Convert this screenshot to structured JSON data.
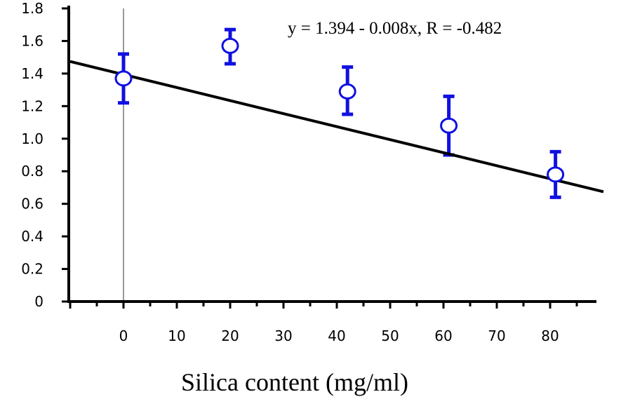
{
  "chart_data": {
    "type": "scatter",
    "title": "",
    "xlabel": "Silica content (mg/ml)",
    "ylabel": "",
    "xlim": [
      -10,
      90
    ],
    "ylim": [
      0,
      1.8
    ],
    "x_ticks": [
      0,
      10,
      20,
      30,
      40,
      50,
      60,
      70,
      80
    ],
    "x_tick_labels": [
      "0",
      "10",
      "20",
      "30",
      "40",
      "50",
      "60",
      "70",
      "80"
    ],
    "y_ticks": [
      0,
      0.2,
      0.4,
      0.6,
      0.8,
      1.0,
      1.2,
      1.4,
      1.6,
      1.8
    ],
    "y_tick_labels": [
      "0",
      "0.2",
      "0.4",
      "0.6",
      "0.8",
      "1.0",
      "1.2",
      "1.4",
      "1.6",
      "1.8"
    ],
    "grid": false,
    "reference_line_x": 0,
    "series": [
      {
        "x": [
          0,
          20,
          42,
          61,
          81
        ],
        "y": [
          1.37,
          1.57,
          1.29,
          1.08,
          0.78
        ],
        "err_low": [
          1.22,
          1.46,
          1.15,
          0.9,
          0.64
        ],
        "err_high": [
          1.52,
          1.67,
          1.44,
          1.26,
          0.92
        ]
      }
    ],
    "fit_line": {
      "intercept": 1.394,
      "slope": -0.008,
      "equation_label": "y = 1.394 - 0.008x, R = -0.482"
    },
    "colors": {
      "points": "#1010e0",
      "axes": "#000000",
      "fit": "#000000",
      "reference_line": "#999999"
    }
  }
}
